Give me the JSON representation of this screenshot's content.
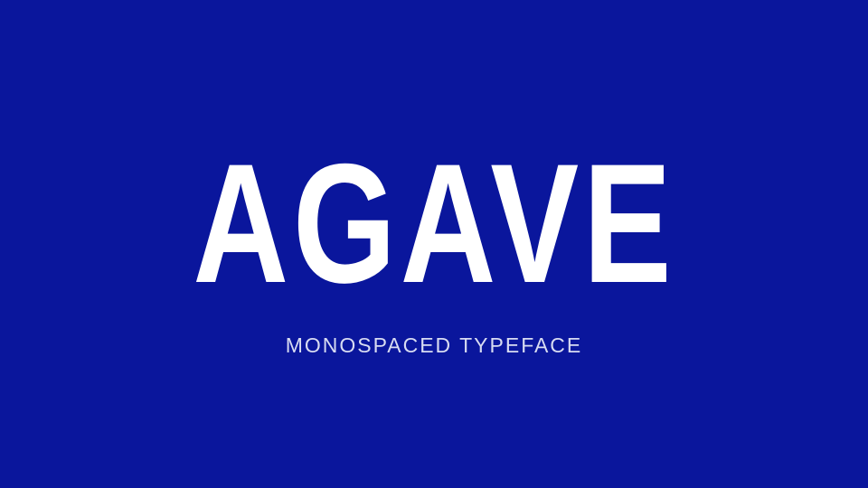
{
  "title": "AGAVE",
  "subtitle": "MONOSPACED TYPEFACE",
  "colors": {
    "background": "#0a169c",
    "title": "#ffffff",
    "subtitle": "#d8dcf2"
  }
}
